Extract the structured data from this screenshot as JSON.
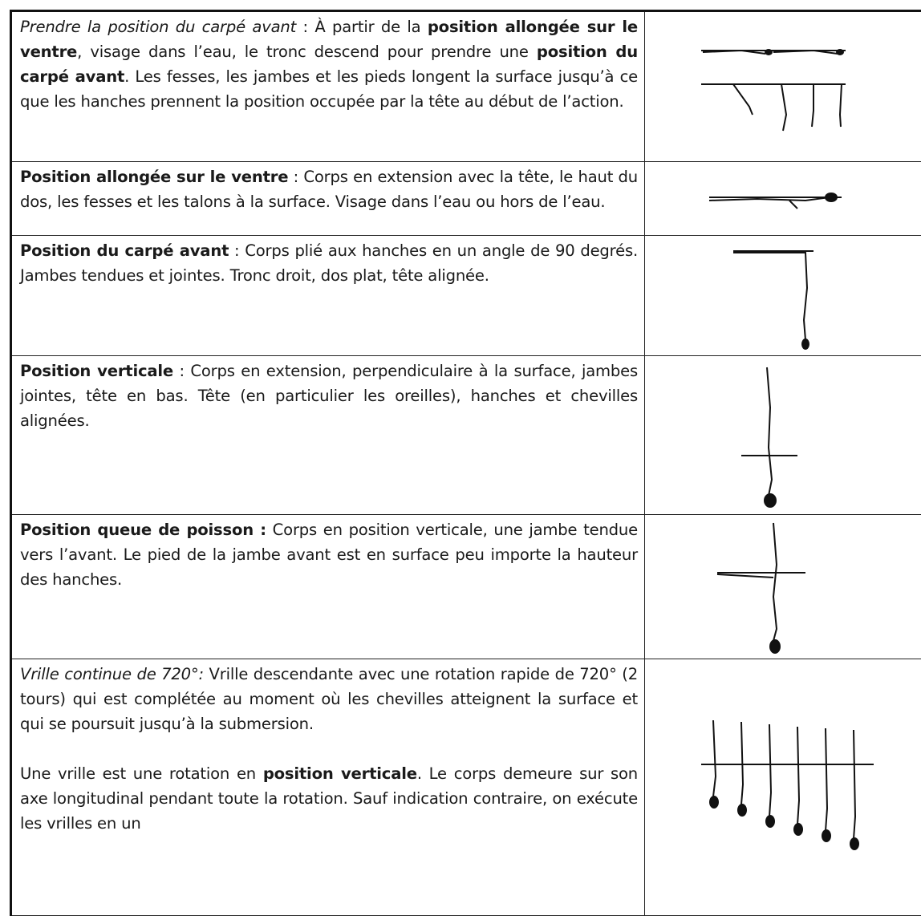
{
  "table": {
    "rows": [
      {
        "paragraphs": [
          [
            "Prendre la position du carpé avant",
            " : À partir de la ",
            "position allongée sur le ventre",
            ", visage dans l’eau, le tronc descend pour prendre une ",
            "position du carpé avant",
            ".  Les fesses, les jambes et les pieds longent la surface jusqu’à ce que les hanches prennent la position occupée par la tête au début de l’action."
          ]
        ]
      },
      {
        "paragraphs": [
          [
            "Position allongée sur le ventre",
            " : Corps en extension avec la tête, le haut du dos, les fesses et les talons à la surface. Visage dans l’eau ou hors de l’eau."
          ]
        ]
      },
      {
        "paragraphs": [
          [
            "Position du carpé avant",
            " : Corps plié aux hanches en un angle de 90 degrés. Jambes tendues et jointes. Tronc droit, dos plat, tête alignée."
          ]
        ]
      },
      {
        "paragraphs": [
          [
            "Position verticale",
            " : Corps en extension, perpendiculaire à la surface, jambes jointes, tête en bas. Tête (en particulier les oreilles), hanches et chevilles alignées."
          ]
        ]
      },
      {
        "paragraphs": [
          [
            "Position queue de poisson :",
            " Corps en position verticale, une jambe tendue vers l’avant. Le pied de la jambe avant est en surface peu importe la hauteur des hanches."
          ]
        ]
      },
      {
        "paragraphs": [
          [
            "Vrille continue de 720°:",
            " Vrille descendante avec une rotation rapide de 720° (2 tours) qui est complétée au moment où les chevilles atteignent la surface et qui se poursuit jusqu’à la submersion."
          ],
          [
            "Une vrille est une rotation en ",
            "position verticale",
            ". Le corps demeure sur son axe longitudinal pendant toute la rotation. Sauf indication contraire, on exécute les vrilles en un"
          ]
        ]
      }
    ]
  }
}
